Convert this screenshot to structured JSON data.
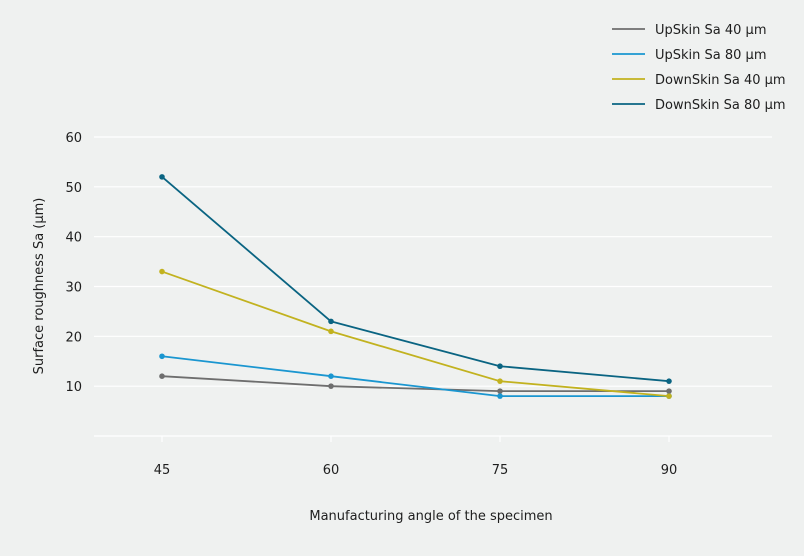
{
  "chart_data": {
    "type": "line",
    "title": "",
    "xlabel": "Manufacturing angle of the specimen",
    "ylabel": "Surface roughness Sa (µm)",
    "x": [
      45,
      60,
      75,
      90
    ],
    "xlim": [
      45,
      90
    ],
    "ylim": [
      0,
      60
    ],
    "yticks": [
      10,
      20,
      30,
      40,
      50,
      60
    ],
    "grid": true,
    "legend": "top-right",
    "series": [
      {
        "name": "UpSkin Sa 40 µm",
        "color": "#6e6e6e",
        "values": [
          12,
          10,
          9,
          9
        ]
      },
      {
        "name": "UpSkin Sa 80 µm",
        "color": "#1a96d0",
        "values": [
          16,
          12,
          8,
          8
        ]
      },
      {
        "name": "DownSkin Sa 40 µm",
        "color": "#c2b21f",
        "values": [
          33,
          21,
          11,
          8
        ]
      },
      {
        "name": "DownSkin Sa 80 µm",
        "color": "#0a6482",
        "values": [
          52,
          23,
          14,
          11
        ]
      }
    ]
  }
}
